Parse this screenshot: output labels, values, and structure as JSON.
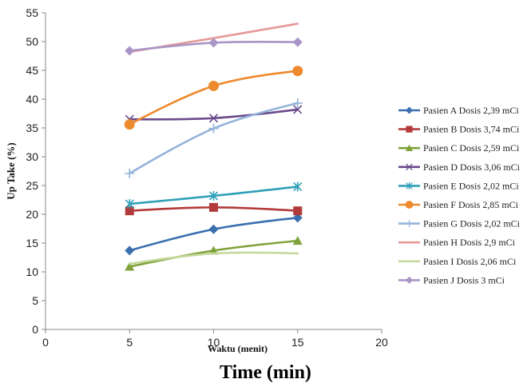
{
  "caption": "Time (min)",
  "chart_data": {
    "type": "line",
    "title": "",
    "xlabel": "Waktu (menit)",
    "ylabel": "Up Take (%)",
    "xlim": [
      0,
      20
    ],
    "ylim": [
      0,
      55
    ],
    "x_ticks": [
      "0",
      "5",
      "10",
      "15",
      "20"
    ],
    "y_ticks": [
      "0",
      "5",
      "10",
      "15",
      "20",
      "25",
      "30",
      "35",
      "40",
      "45",
      "50",
      "55"
    ],
    "grid": false,
    "legend_position": "right",
    "series": [
      {
        "name": "Pasien A Dosis 2,39 mCi",
        "color": "#3A6FB0",
        "marker": "diamond",
        "x": [
          5,
          10,
          15
        ],
        "y": [
          13.7,
          17.4,
          19.4
        ]
      },
      {
        "name": "Pasien B Dosis 3,74 mCi",
        "color": "#B33A3A",
        "marker": "square",
        "x": [
          5,
          10,
          15
        ],
        "y": [
          20.6,
          21.2,
          20.6
        ]
      },
      {
        "name": "Pasien C Dosis 2,59 mCi",
        "color": "#7FA23A",
        "marker": "triangle",
        "x": [
          5,
          10,
          15
        ],
        "y": [
          10.9,
          13.7,
          15.4
        ]
      },
      {
        "name": "Pasien D Dosis 3,06 mCi",
        "color": "#6A4A8C",
        "marker": "x",
        "x": [
          5,
          10,
          15
        ],
        "y": [
          36.5,
          36.7,
          38.2
        ]
      },
      {
        "name": "Pasien E Dosis 2,02 mCi",
        "color": "#31A0B8",
        "marker": "asterisk",
        "x": [
          5,
          10,
          15
        ],
        "y": [
          21.8,
          23.2,
          24.8
        ]
      },
      {
        "name": "Pasien F Dosis 2,85 mCi",
        "color": "#EE8A2E",
        "marker": "circle",
        "x": [
          5,
          10,
          15
        ],
        "y": [
          35.6,
          42.3,
          44.9
        ]
      },
      {
        "name": "Pasien G Dosis 2,02 mCi",
        "color": "#94B3DA",
        "marker": "plus",
        "x": [
          5,
          10,
          15
        ],
        "y": [
          27.1,
          34.9,
          39.3
        ]
      },
      {
        "name": "Pasien H Dosis 2,9 mCi",
        "color": "#E39A98",
        "marker": "none",
        "x": [
          5,
          10,
          15
        ],
        "y": [
          48.2,
          50.6,
          53.1
        ]
      },
      {
        "name": "Pasien I Dosis 2,06 mCi",
        "color": "#C3D89A",
        "marker": "none",
        "x": [
          5,
          10,
          15
        ],
        "y": [
          11.4,
          13.2,
          13.2
        ]
      },
      {
        "name": "Pasien J Dosis 3 mCi",
        "color": "#A994C6",
        "marker": "diamond",
        "x": [
          5,
          10,
          15
        ],
        "y": [
          48.4,
          49.8,
          49.9
        ]
      }
    ]
  }
}
